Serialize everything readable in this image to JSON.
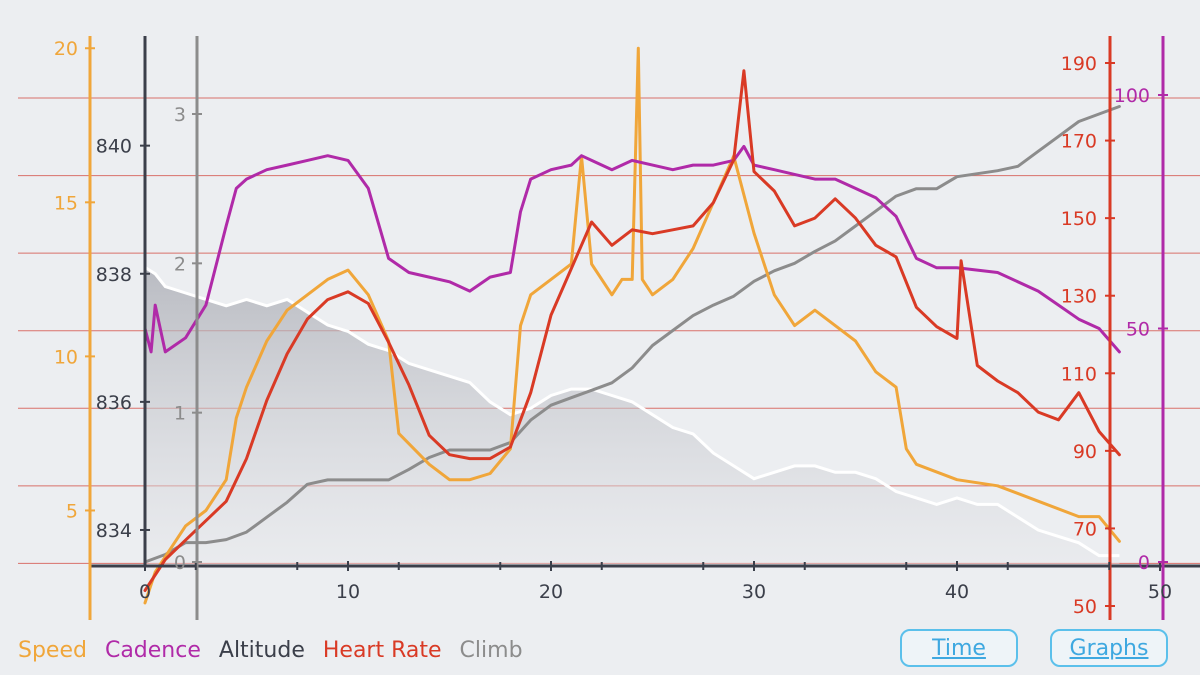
{
  "colors": {
    "speed": "#f0a63a",
    "cadence": "#b02aa8",
    "altitude": "#3b3f4a",
    "heart_rate": "#d93a25",
    "climb": "#8c8c8c",
    "grid": "#d9706a",
    "button": "#3ea8e0"
  },
  "legend": {
    "speed": "Speed",
    "cadence": "Cadence",
    "altitude": "Altitude",
    "heart_rate": "Heart Rate",
    "climb": "Climb"
  },
  "buttons": {
    "time": "Time",
    "graphs": "Graphs"
  },
  "chart_data": {
    "type": "line",
    "x_ticks": [
      0,
      10,
      20,
      30,
      40,
      50
    ],
    "xlim": [
      0,
      50
    ],
    "axes": {
      "speed": {
        "ticks": [
          5,
          10,
          15,
          20
        ],
        "range": [
          1.9,
          20.3
        ]
      },
      "altitude": {
        "ticks": [
          834,
          836,
          838,
          840
        ],
        "range": [
          833.5,
          840.9
        ]
      },
      "climb": {
        "ticks": [
          0,
          1,
          2,
          3
        ],
        "range": [
          0,
          3
        ]
      },
      "heart_rate": {
        "ticks": [
          50,
          70,
          90,
          110,
          130,
          150,
          170,
          190
        ],
        "range": [
          50,
          190
        ]
      },
      "cadence": {
        "ticks": [
          0,
          50,
          100
        ],
        "range": [
          0,
          100
        ]
      }
    },
    "series": [
      {
        "key": "speed",
        "name": "Speed",
        "x": [
          0,
          0.5,
          1,
          2,
          3,
          4,
          4.5,
          5,
          6,
          7,
          8,
          9,
          10,
          11,
          12,
          12.5,
          14,
          15,
          16,
          17,
          18,
          18.5,
          19,
          20,
          21,
          21.5,
          22,
          23,
          23.5,
          24,
          24.3,
          24.5,
          25,
          26,
          27,
          28,
          29,
          30,
          31,
          32,
          33,
          34,
          35,
          36,
          37,
          37.5,
          38,
          40,
          42,
          44,
          46,
          47,
          48
        ],
        "values": [
          2,
          3,
          3.5,
          4.5,
          5,
          6,
          8,
          9,
          10.5,
          11.5,
          12,
          12.5,
          12.8,
          12,
          10.5,
          7.5,
          6.5,
          6,
          6,
          6.2,
          7,
          11,
          12,
          12.5,
          13,
          16.5,
          13,
          12,
          12.5,
          12.5,
          20,
          12.5,
          12,
          12.5,
          13.5,
          15,
          16.5,
          14,
          12,
          11,
          11.5,
          11,
          10.5,
          9.5,
          9,
          7,
          6.5,
          6,
          5.8,
          5.3,
          4.8,
          4.8,
          4
        ]
      },
      {
        "key": "cadence",
        "name": "Cadence",
        "x": [
          0,
          0.3,
          0.5,
          1,
          2,
          3,
          4,
          4.5,
          5,
          6,
          7,
          8,
          9,
          10,
          11,
          12,
          13,
          14,
          15,
          16,
          17,
          18,
          18.5,
          19,
          20,
          21,
          21.5,
          22,
          23,
          24,
          25,
          26,
          27,
          28,
          29,
          29.5,
          30,
          31,
          32,
          33,
          34,
          35,
          36,
          37,
          38,
          39,
          40,
          42,
          44,
          45,
          46,
          47,
          48
        ],
        "values": [
          50,
          45,
          55,
          45,
          48,
          55,
          72,
          80,
          82,
          84,
          85,
          86,
          87,
          86,
          80,
          65,
          62,
          61,
          60,
          58,
          61,
          62,
          75,
          82,
          84,
          85,
          87,
          86,
          84,
          86,
          85,
          84,
          85,
          85,
          86,
          89,
          85,
          84,
          83,
          82,
          82,
          80,
          78,
          74,
          65,
          63,
          63,
          62,
          58,
          55,
          52,
          50,
          45
        ]
      },
      {
        "key": "altitude",
        "name": "Altitude",
        "x": [
          0,
          0.5,
          1,
          2,
          3,
          4,
          5,
          6,
          7,
          8,
          9,
          10,
          11,
          12,
          13,
          14,
          15,
          16,
          17,
          18,
          19,
          20,
          21,
          22,
          23,
          24,
          25,
          26,
          27,
          28,
          29,
          30,
          31,
          32,
          33,
          34,
          35,
          36,
          37,
          38,
          39,
          40,
          41,
          42,
          43,
          44,
          45,
          46,
          47,
          48
        ],
        "values": [
          838.1,
          838.0,
          837.8,
          837.7,
          837.6,
          837.5,
          837.6,
          837.5,
          837.6,
          837.4,
          837.2,
          837.1,
          836.9,
          836.8,
          836.6,
          836.5,
          836.4,
          836.3,
          836.0,
          835.8,
          835.9,
          836.1,
          836.2,
          836.2,
          836.1,
          836.0,
          835.8,
          835.6,
          835.5,
          835.2,
          835.0,
          834.8,
          834.9,
          835.0,
          835.0,
          834.9,
          834.9,
          834.8,
          834.6,
          834.5,
          834.4,
          834.5,
          834.4,
          834.4,
          834.2,
          834.0,
          833.9,
          833.8,
          833.6,
          833.6
        ]
      },
      {
        "key": "heart_rate",
        "name": "Heart Rate",
        "x": [
          0,
          1,
          2,
          3,
          4,
          5,
          6,
          7,
          8,
          9,
          10,
          11,
          12,
          13,
          14,
          15,
          16,
          17,
          18,
          19,
          20,
          21,
          22,
          23,
          24,
          25,
          26,
          27,
          28,
          29,
          29.5,
          30,
          31,
          32,
          33,
          34,
          35,
          36,
          37,
          38,
          39,
          40,
          40.2,
          41,
          42,
          43,
          44,
          45,
          46,
          47,
          48
        ],
        "values": [
          54,
          62,
          67,
          72,
          77,
          88,
          103,
          115,
          124,
          129,
          131,
          128,
          118,
          107,
          94,
          89,
          88,
          88,
          91,
          105,
          125,
          137,
          149,
          143,
          147,
          146,
          147,
          148,
          154,
          165,
          188,
          162,
          157,
          148,
          150,
          155,
          150,
          143,
          140,
          127,
          122,
          119,
          139,
          112,
          108,
          105,
          100,
          98,
          105,
          95,
          89
        ]
      },
      {
        "key": "climb",
        "name": "Climb",
        "x": [
          0,
          1,
          2,
          3,
          4,
          5,
          6,
          7,
          8,
          9,
          10,
          11,
          12,
          13,
          14,
          15,
          16,
          17,
          18,
          19,
          20,
          21,
          22,
          23,
          24,
          25,
          26,
          27,
          28,
          29,
          30,
          31,
          32,
          33,
          34,
          35,
          36,
          37,
          38,
          39,
          40,
          41,
          42,
          43,
          44,
          45,
          46,
          47,
          48
        ],
        "values": [
          0,
          0.05,
          0.13,
          0.13,
          0.15,
          0.2,
          0.3,
          0.4,
          0.52,
          0.55,
          0.55,
          0.55,
          0.55,
          0.62,
          0.7,
          0.75,
          0.75,
          0.75,
          0.8,
          0.95,
          1.05,
          1.1,
          1.15,
          1.2,
          1.3,
          1.45,
          1.55,
          1.65,
          1.72,
          1.78,
          1.88,
          1.95,
          2.0,
          2.08,
          2.15,
          2.25,
          2.35,
          2.45,
          2.5,
          2.5,
          2.58,
          2.6,
          2.62,
          2.65,
          2.75,
          2.85,
          2.95,
          3.0,
          3.05
        ]
      }
    ]
  }
}
